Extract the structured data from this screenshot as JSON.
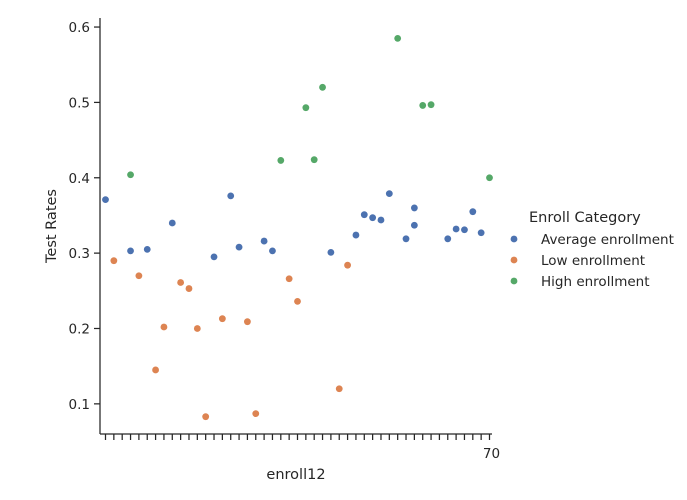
{
  "chart_data": {
    "type": "scatter",
    "title": "",
    "xlabel": "enroll12",
    "ylabel": "Test Rates",
    "ylim": [
      0.06,
      0.612
    ],
    "yticks": [
      0.1,
      0.2,
      0.3,
      0.4,
      0.5,
      0.6
    ],
    "ytick_labels": [
      "0.1",
      "0.2",
      "0.3",
      "0.4",
      "0.5",
      "0.6"
    ],
    "grid": false,
    "legend": {
      "title": "Enroll Category",
      "placement": "right",
      "entries": [
        "Average enrollment",
        "Low enrollment",
        "High enrollment"
      ]
    },
    "x_categorical": true,
    "x_tick_labels_legible": false,
    "x_rightmost_tick_text": "70",
    "category_count": 47,
    "series": [
      {
        "name": "Average enrollment",
        "color": "#4c72b0",
        "points": [
          [
            0,
            0.371
          ],
          [
            3,
            0.303
          ],
          [
            5,
            0.305
          ],
          [
            8,
            0.34
          ],
          [
            13,
            0.295
          ],
          [
            15,
            0.376
          ],
          [
            16,
            0.308
          ],
          [
            19,
            0.316
          ],
          [
            20,
            0.303
          ],
          [
            27,
            0.301
          ],
          [
            30,
            0.324
          ],
          [
            31,
            0.351
          ],
          [
            32,
            0.347
          ],
          [
            33,
            0.344
          ],
          [
            34,
            0.379
          ],
          [
            36,
            0.319
          ],
          [
            37,
            0.337
          ],
          [
            37,
            0.36
          ],
          [
            41,
            0.319
          ],
          [
            42,
            0.332
          ],
          [
            43,
            0.331
          ],
          [
            44,
            0.355
          ],
          [
            45,
            0.327
          ]
        ]
      },
      {
        "name": "Low enrollment",
        "color": "#dd8452",
        "points": [
          [
            1,
            0.29
          ],
          [
            4,
            0.27
          ],
          [
            6,
            0.145
          ],
          [
            7,
            0.202
          ],
          [
            9,
            0.261
          ],
          [
            10,
            0.253
          ],
          [
            11,
            0.2
          ],
          [
            12,
            0.083
          ],
          [
            14,
            0.213
          ],
          [
            17,
            0.209
          ],
          [
            18,
            0.087
          ],
          [
            22,
            0.266
          ],
          [
            23,
            0.236
          ],
          [
            28,
            0.12
          ],
          [
            29,
            0.284
          ]
        ]
      },
      {
        "name": "High enrollment",
        "color": "#55a868",
        "points": [
          [
            3,
            0.404
          ],
          [
            21,
            0.423
          ],
          [
            24,
            0.493
          ],
          [
            25,
            0.424
          ],
          [
            26,
            0.52
          ],
          [
            35,
            0.585
          ],
          [
            38,
            0.496
          ],
          [
            39,
            0.497
          ],
          [
            46,
            0.4
          ]
        ]
      }
    ]
  }
}
